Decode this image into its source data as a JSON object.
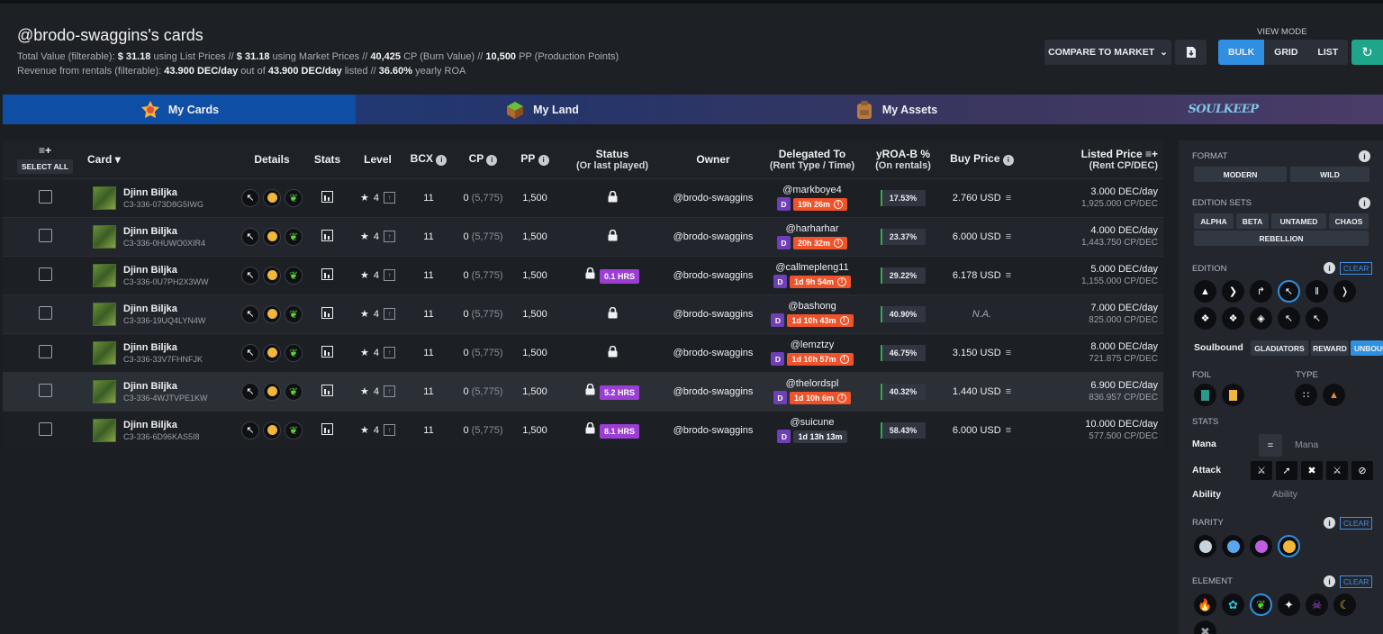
{
  "header": {
    "title": "@brodo-swaggins's cards",
    "line1": {
      "prefix": "Total Value (filterable):",
      "list_value": "$ 31.18",
      "list_suffix": "using List Prices //",
      "market_value": "$ 31.18",
      "market_suffix": "using Market Prices //",
      "cp_value": "40,425",
      "cp_suffix": "CP (Burn Value) //",
      "pp_value": "10,500",
      "pp_suffix": "PP (Production Points)"
    },
    "line2": {
      "prefix": "Revenue from rentals (filterable):",
      "rev_value": "43.900 DEC/day",
      "mid": "out of",
      "listed_value": "43.900 DEC/day",
      "listed_suffix": "listed //",
      "roa_value": "36.60%",
      "roa_suffix": "yearly ROA"
    },
    "compare_label": "COMPARE TO MARKET",
    "view_mode_label": "VIEW MODE",
    "view_modes": [
      "BULK",
      "GRID",
      "LIST"
    ],
    "active_view_mode": "BULK"
  },
  "tabs": [
    {
      "label": "My Cards",
      "active": true
    },
    {
      "label": "My Land",
      "active": false
    },
    {
      "label": "My Assets",
      "active": false
    },
    {
      "label": "SOULKEEP",
      "active": false
    }
  ],
  "table": {
    "select_all": "SELECT ALL",
    "headers": {
      "card": "Card",
      "details": "Details",
      "stats": "Stats",
      "level": "Level",
      "bcx": "BCX",
      "cp": "CP",
      "pp": "PP",
      "status": "Status",
      "status_sub": "(Or last played)",
      "owner": "Owner",
      "delegated": "Delegated To",
      "delegated_sub": "(Rent Type / Time)",
      "yroa": "yROA-B %",
      "yroa_sub": "(On rentals)",
      "buy": "Buy Price",
      "listed": "Listed Price",
      "listed_sub": "(Rent CP/DEC)"
    },
    "rows": [
      {
        "name": "Djinn Biljka",
        "id": "C3-336-073D8G5IWG",
        "level": "4",
        "bcx": "11",
        "cp": "0",
        "cp_max": "(5,775)",
        "pp": "1,500",
        "status_hrs": "",
        "owner": "@brodo-swaggins",
        "deleg_user": "@markboye4",
        "deleg_type": "D",
        "deleg_time": "19h 26m",
        "time_dark": false,
        "yroa": "17.53%",
        "buy": "2.760 USD",
        "listed": "3.000 DEC/day",
        "listed_cp": "1,925.000 CP/DEC"
      },
      {
        "name": "Djinn Biljka",
        "id": "C3-336-0HUWO0XIR4",
        "level": "4",
        "bcx": "11",
        "cp": "0",
        "cp_max": "(5,775)",
        "pp": "1,500",
        "status_hrs": "",
        "owner": "@brodo-swaggins",
        "deleg_user": "@harharhar",
        "deleg_type": "D",
        "deleg_time": "20h 32m",
        "time_dark": false,
        "yroa": "23.37%",
        "buy": "6.000 USD",
        "listed": "4.000 DEC/day",
        "listed_cp": "1,443.750 CP/DEC"
      },
      {
        "name": "Djinn Biljka",
        "id": "C3-336-0U7PH2X3WW",
        "level": "4",
        "bcx": "11",
        "cp": "0",
        "cp_max": "(5,775)",
        "pp": "1,500",
        "status_hrs": "0.1 HRS",
        "owner": "@brodo-swaggins",
        "deleg_user": "@callmepleng11",
        "deleg_type": "D",
        "deleg_time": "1d 9h 54m",
        "time_dark": false,
        "yroa": "29.22%",
        "buy": "6.178 USD",
        "listed": "5.000 DEC/day",
        "listed_cp": "1,155.000 CP/DEC"
      },
      {
        "name": "Djinn Biljka",
        "id": "C3-336-19UQ4LYN4W",
        "level": "4",
        "bcx": "11",
        "cp": "0",
        "cp_max": "(5,775)",
        "pp": "1,500",
        "status_hrs": "",
        "owner": "@brodo-swaggins",
        "deleg_user": "@bashong",
        "deleg_type": "D",
        "deleg_time": "1d 10h 43m",
        "time_dark": false,
        "yroa": "40.90%",
        "buy": "N.A.",
        "listed": "7.000 DEC/day",
        "listed_cp": "825.000 CP/DEC"
      },
      {
        "name": "Djinn Biljka",
        "id": "C3-336-33V7FHNFJK",
        "level": "4",
        "bcx": "11",
        "cp": "0",
        "cp_max": "(5,775)",
        "pp": "1,500",
        "status_hrs": "",
        "owner": "@brodo-swaggins",
        "deleg_user": "@lemztzy",
        "deleg_type": "D",
        "deleg_time": "1d 10h 57m",
        "time_dark": false,
        "yroa": "46.75%",
        "buy": "3.150 USD",
        "listed": "8.000 DEC/day",
        "listed_cp": "721.875 CP/DEC"
      },
      {
        "name": "Djinn Biljka",
        "id": "C3-336-4WJTVPE1KW",
        "level": "4",
        "bcx": "11",
        "cp": "0",
        "cp_max": "(5,775)",
        "pp": "1,500",
        "status_hrs": "5.2 HRS",
        "owner": "@brodo-swaggins",
        "deleg_user": "@thelordspl",
        "deleg_type": "D",
        "deleg_time": "1d 10h 6m",
        "time_dark": false,
        "yroa": "40.32%",
        "buy": "1.440 USD",
        "listed": "6.900 DEC/day",
        "listed_cp": "836.957 CP/DEC"
      },
      {
        "name": "Djinn Biljka",
        "id": "C3-336-6D96KAS5I8",
        "level": "4",
        "bcx": "11",
        "cp": "0",
        "cp_max": "(5,775)",
        "pp": "1,500",
        "status_hrs": "8.1 HRS",
        "owner": "@brodo-swaggins",
        "deleg_user": "@suicune",
        "deleg_type": "D",
        "deleg_time": "1d 13h 13m",
        "time_dark": true,
        "yroa": "58.43%",
        "buy": "6.000 USD",
        "listed": "10.000 DEC/day",
        "listed_cp": "577.500 CP/DEC"
      }
    ]
  },
  "sidebar": {
    "format_label": "FORMAT",
    "formats": [
      "MODERN",
      "WILD"
    ],
    "edition_sets_label": "EDITION SETS",
    "edition_sets": [
      "ALPHA",
      "BETA",
      "UNTAMED",
      "CHAOS",
      "REBELLION"
    ],
    "edition_label": "EDITION",
    "clear_label": "CLEAR",
    "soulbound_label": "Soulbound",
    "soulbound_opts": [
      "GLADIATORS",
      "REWARD",
      "UNBOUND"
    ],
    "foil_label": "FOIL",
    "type_label": "TYPE",
    "stats_label": "STATS",
    "mana_label": "Mana",
    "mana_op": "=",
    "mana_placeholder": "Mana",
    "attack_label": "Attack",
    "ability_label": "Ability",
    "ability_placeholder": "Ability",
    "rarity_label": "RARITY",
    "rarity_colors": [
      "#c9d3de",
      "#5aa7f0",
      "#c05ee3",
      "#f2b73a"
    ],
    "element_label": "ELEMENT",
    "element_colors": [
      "#f04a3a",
      "#2cc6d6",
      "#5fcf3a",
      "#f2f2f2",
      "#a64fe0",
      "#f2c23a",
      "#9aa0a8"
    ]
  }
}
